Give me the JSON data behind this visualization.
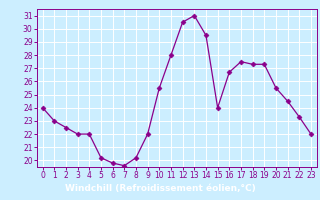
{
  "x": [
    0,
    1,
    2,
    3,
    4,
    5,
    6,
    7,
    8,
    9,
    10,
    11,
    12,
    13,
    14,
    15,
    16,
    17,
    18,
    19,
    20,
    21,
    22,
    23
  ],
  "y": [
    24,
    23,
    22.5,
    22,
    22,
    20.2,
    19.8,
    19.6,
    20.2,
    22,
    25.5,
    28,
    30.5,
    31,
    29.5,
    24,
    26.7,
    27.5,
    27.3,
    27.3,
    25.5,
    24.5,
    23.3,
    22
  ],
  "line_color": "#8B008B",
  "marker": "D",
  "marker_size": 2.5,
  "bg_color": "#cceeff",
  "grid_color": "#ffffff",
  "xlabel": "Windchill (Refroidissement éolien,°C)",
  "xlabel_bg": "#8B008B",
  "xlabel_color": "#ffffff",
  "ylim": [
    19.5,
    31.5
  ],
  "xlim": [
    -0.5,
    23.5
  ],
  "yticks": [
    20,
    21,
    22,
    23,
    24,
    25,
    26,
    27,
    28,
    29,
    30,
    31
  ],
  "xticks": [
    0,
    1,
    2,
    3,
    4,
    5,
    6,
    7,
    8,
    9,
    10,
    11,
    12,
    13,
    14,
    15,
    16,
    17,
    18,
    19,
    20,
    21,
    22,
    23
  ],
  "tick_label_size": 5.5,
  "xlabel_fontsize": 6.5,
  "spine_color": "#8B008B",
  "tick_color": "#8B008B"
}
